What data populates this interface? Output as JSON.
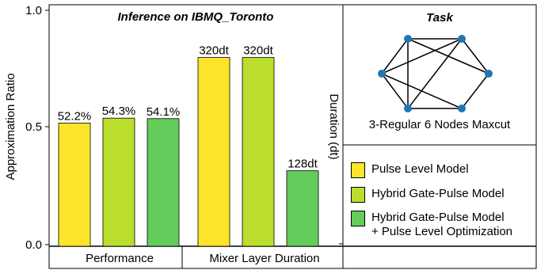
{
  "chart_data": {
    "type": "bar",
    "title": "Inference on IBMQ_Toronto",
    "ylabel_left": "Approximation Ratio",
    "ylabel_right": "Duration (dt)",
    "yticks": [
      "1.0",
      "0.5",
      "0.0"
    ],
    "ylim": [
      0,
      1.0
    ],
    "groups": [
      {
        "label": "Performance",
        "bars": [
          {
            "series": "Pulse Level Model",
            "value": 0.522,
            "label": "52.2%"
          },
          {
            "series": "Hybrid Gate-Pulse Model",
            "value": 0.543,
            "label": "54.3%"
          },
          {
            "series": "Hybrid Gate-Pulse Model + Pulse Level Optimization",
            "value": 0.541,
            "label": "54.1%"
          }
        ]
      },
      {
        "label": "Mixer Layer Duration",
        "bars": [
          {
            "series": "Pulse Level Model",
            "value": 320,
            "label": "320dt"
          },
          {
            "series": "Hybrid Gate-Pulse Model",
            "value": 320,
            "label": "320dt"
          },
          {
            "series": "Hybrid Gate-Pulse Model + Pulse Level Optimization",
            "value": 128,
            "label": "128dt"
          }
        ],
        "ylim": [
          0,
          400
        ]
      }
    ],
    "legend": [
      {
        "label": "Pulse Level Model",
        "color": "#FDE52B"
      },
      {
        "label": "Hybrid Gate-Pulse Model",
        "color": "#BBDD2E"
      },
      {
        "label": "Hybrid Gate-Pulse Model\n+ Pulse Level Optimization",
        "color": "#63CC5B"
      }
    ],
    "legend_placement": "bottom-right"
  },
  "task": {
    "title": "Task",
    "caption": "3-Regular 6 Nodes Maxcut",
    "node_color": "#1F77B4"
  }
}
